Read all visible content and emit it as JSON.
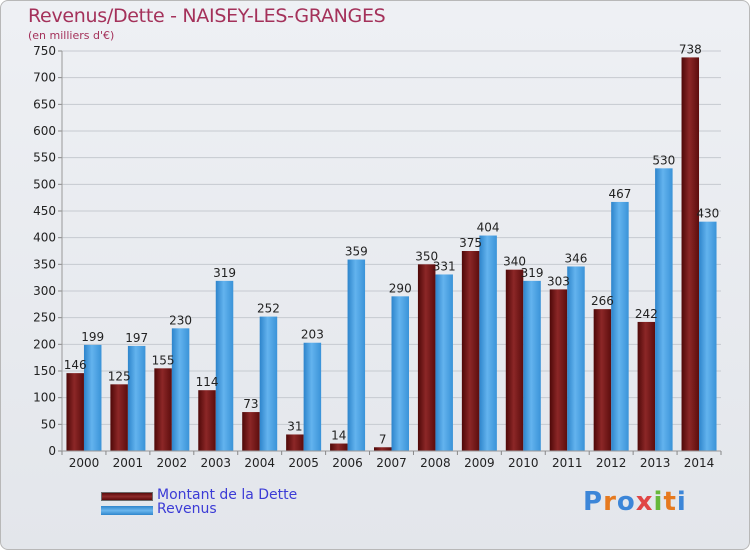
{
  "title": "Revenus/Dette - NAISEY-LES-GRANGES",
  "subtitle": "(en milliers d'€)",
  "logo": "Proxiti",
  "colors": {
    "dette": "#7a1b1b",
    "revenus": "#4aa3e6",
    "title": "#a4315a",
    "legend_text": "#3b3bd6"
  },
  "chart_data": {
    "type": "bar",
    "title": "Revenus/Dette - NAISEY-LES-GRANGES",
    "ylabel": "(en milliers d'€)",
    "xlabel": "",
    "ylim": [
      0,
      750
    ],
    "yticks": [
      0,
      50,
      100,
      150,
      200,
      250,
      300,
      350,
      400,
      450,
      500,
      550,
      600,
      650,
      700,
      750
    ],
    "grid": true,
    "legend_placement": "bottom-left",
    "categories": [
      "2000",
      "2001",
      "2002",
      "2003",
      "2004",
      "2005",
      "2006",
      "2007",
      "2008",
      "2009",
      "2010",
      "2011",
      "2012",
      "2013",
      "2014"
    ],
    "series": [
      {
        "name": "Montant de la Dette",
        "values": [
          146,
          125,
          155,
          114,
          73,
          31,
          14,
          7,
          350,
          375,
          340,
          303,
          266,
          242,
          738
        ]
      },
      {
        "name": "Revenus",
        "values": [
          199,
          197,
          230,
          319,
          252,
          203,
          359,
          290,
          331,
          404,
          319,
          346,
          467,
          530,
          430
        ]
      }
    ]
  }
}
